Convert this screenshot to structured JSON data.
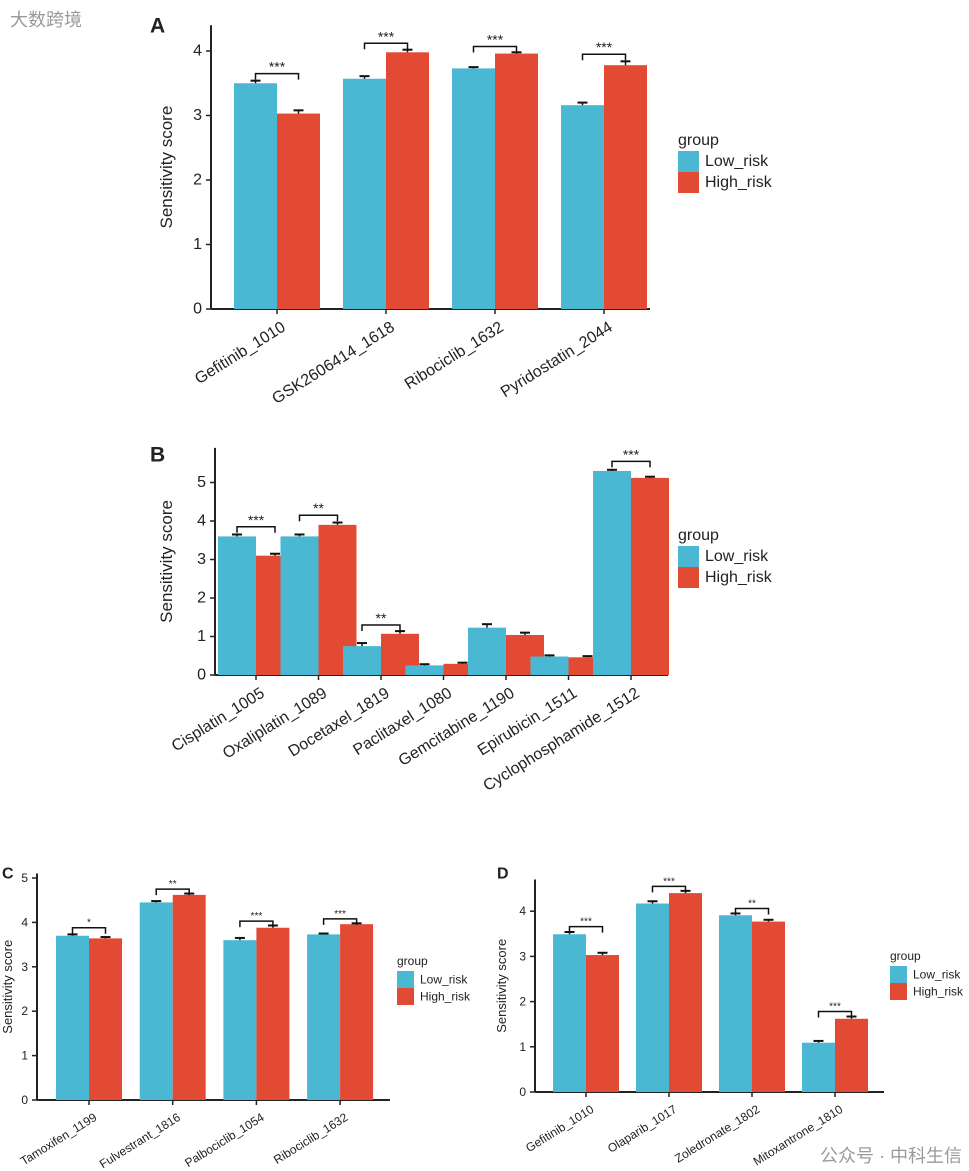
{
  "colors": {
    "low": "#4ab8d3",
    "high": "#e34a33",
    "axis": "#222222"
  },
  "legend": {
    "title": "group",
    "low_label": "Low_risk",
    "high_label": "High_risk"
  },
  "watermarks": [
    "公众号 · 中科生信",
    "大数跨境"
  ],
  "chart_data": [
    {
      "panel": "A",
      "type": "bar",
      "title": "",
      "xlabel": "",
      "ylabel": "Sensitivity score",
      "ylim": [
        0,
        4.4
      ],
      "yticks": [
        0,
        1,
        2,
        3,
        4
      ],
      "legend": "right",
      "categories": [
        "Gefitinib_1010",
        "GSK2606414_1618",
        "Ribociclib_1632",
        "Pyridostatin_2044"
      ],
      "series": [
        {
          "name": "Low_risk",
          "values": [
            3.5,
            3.57,
            3.73,
            3.16
          ],
          "errors": [
            0.04,
            0.04,
            0.02,
            0.04
          ]
        },
        {
          "name": "High_risk",
          "values": [
            3.03,
            3.98,
            3.96,
            3.78
          ],
          "errors": [
            0.05,
            0.04,
            0.02,
            0.06
          ]
        }
      ],
      "significance": [
        "***",
        "***",
        "***",
        "***"
      ],
      "bracket_levels": [
        3.65,
        4.12,
        4.07,
        3.95
      ]
    },
    {
      "panel": "B",
      "type": "bar",
      "title": "",
      "xlabel": "",
      "ylabel": "Sensitivity score",
      "ylim": [
        0,
        5.9
      ],
      "yticks": [
        0,
        1,
        2,
        3,
        4,
        5
      ],
      "legend": "right",
      "categories": [
        "Cisplatin_1005",
        "Oxaliplatin_1089",
        "Docetaxel_1819",
        "Paclitaxel_1080",
        "Gemcitabine_1190",
        "Epirubicin_1511",
        "Cyclophosphamide_1512"
      ],
      "series": [
        {
          "name": "Low_risk",
          "values": [
            3.6,
            3.6,
            0.75,
            0.25,
            1.23,
            0.48,
            5.3
          ],
          "errors": [
            0.05,
            0.05,
            0.08,
            0.03,
            0.09,
            0.03,
            0.03
          ]
        },
        {
          "name": "High_risk",
          "values": [
            3.1,
            3.9,
            1.07,
            0.29,
            1.04,
            0.46,
            5.12
          ],
          "errors": [
            0.05,
            0.06,
            0.07,
            0.03,
            0.06,
            0.03,
            0.03
          ]
        }
      ],
      "significance": [
        "***",
        "**",
        "**",
        "",
        "",
        "",
        "***"
      ],
      "bracket_levels": [
        3.85,
        4.15,
        1.3,
        null,
        null,
        null,
        5.55
      ]
    },
    {
      "panel": "C",
      "type": "bar",
      "title": "",
      "xlabel": "",
      "ylabel": "Sensitivity score",
      "ylim": [
        0,
        5.1
      ],
      "yticks": [
        0,
        1,
        2,
        3,
        4,
        5
      ],
      "legend": "right",
      "categories": [
        "Tamoxifen_1199",
        "Fulvestrant_1816",
        "Palbociclib_1054",
        "Ribociclib_1632"
      ],
      "series": [
        {
          "name": "Low_risk",
          "values": [
            3.7,
            4.45,
            3.6,
            3.73
          ],
          "errors": [
            0.03,
            0.03,
            0.05,
            0.02
          ]
        },
        {
          "name": "High_risk",
          "values": [
            3.64,
            4.62,
            3.88,
            3.96
          ],
          "errors": [
            0.03,
            0.03,
            0.05,
            0.02
          ]
        }
      ],
      "significance": [
        "*",
        "**",
        "***",
        "***"
      ],
      "bracket_levels": [
        3.88,
        4.75,
        4.03,
        4.08
      ]
    },
    {
      "panel": "D",
      "type": "bar",
      "title": "",
      "xlabel": "",
      "ylabel": "Sensitivity score",
      "ylim": [
        0,
        4.7
      ],
      "yticks": [
        0,
        1,
        2,
        3,
        4
      ],
      "legend": "right",
      "categories": [
        "Gefitinib_1010",
        "Olaparib_1017",
        "Zoledronate_1802",
        "Mitoxantrone_1810"
      ],
      "series": [
        {
          "name": "Low_risk",
          "values": [
            3.49,
            4.17,
            3.91,
            1.09
          ],
          "errors": [
            0.05,
            0.05,
            0.04,
            0.04
          ]
        },
        {
          "name": "High_risk",
          "values": [
            3.03,
            4.4,
            3.77,
            1.62
          ],
          "errors": [
            0.05,
            0.05,
            0.04,
            0.05
          ]
        }
      ],
      "significance": [
        "***",
        "***",
        "**",
        "***"
      ],
      "bracket_levels": [
        3.66,
        4.55,
        4.06,
        1.78
      ]
    }
  ]
}
